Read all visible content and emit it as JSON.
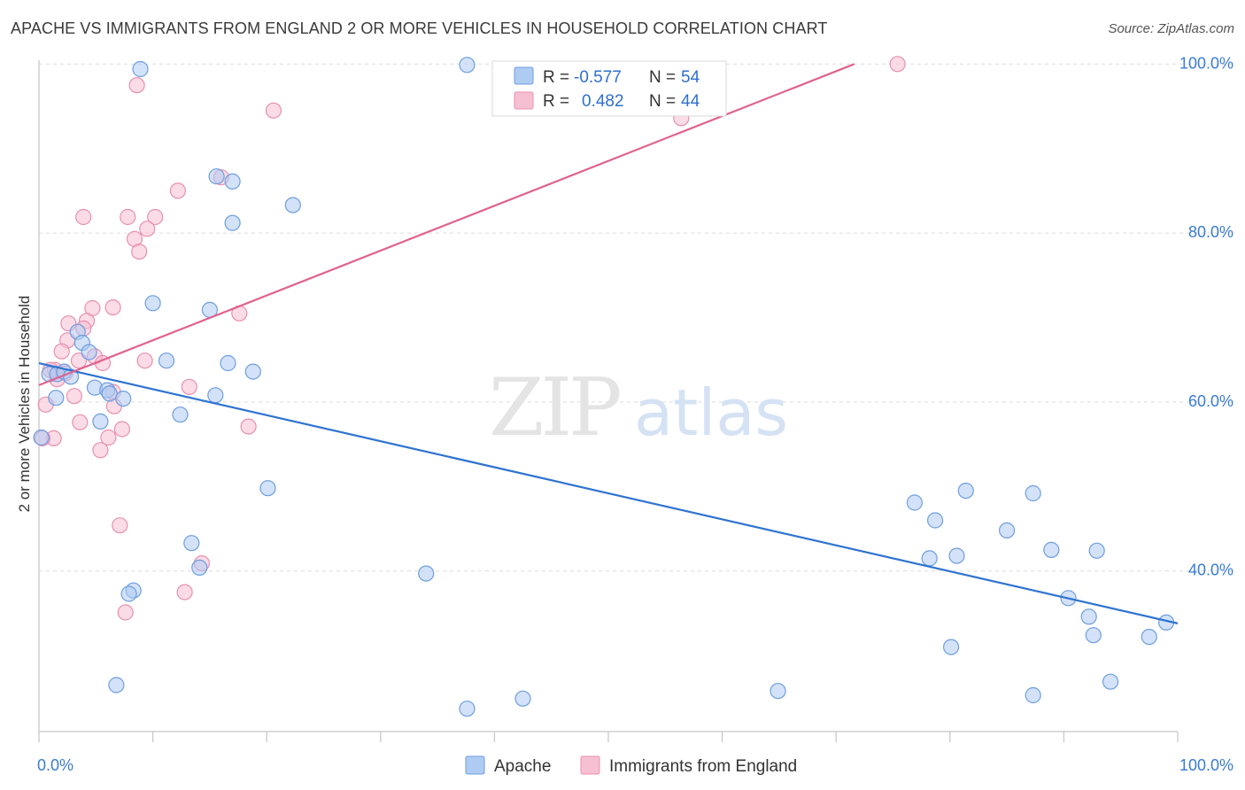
{
  "title": "APACHE VS IMMIGRANTS FROM ENGLAND 2 OR MORE VEHICLES IN HOUSEHOLD CORRELATION CHART",
  "source": "Source: ZipAtlas.com",
  "watermark": {
    "zip": "ZIP",
    "atlas": "atlas"
  },
  "colors": {
    "apache_fill": "#aecbf2",
    "apache_stroke": "#6d9ee0",
    "apache_line": "#2e73d1",
    "england_fill": "#f7c0d2",
    "england_stroke": "#e98fae",
    "england_line": "#e0628f",
    "tick_text": "#3a7bd5",
    "grid": "#dcdcdc"
  },
  "stats": {
    "r_label": "R =",
    "n_label": "N =",
    "apache": {
      "r": "-0.577",
      "n": "54"
    },
    "england": {
      "r": "0.482",
      "n": "44"
    }
  },
  "chart_data": {
    "type": "scatter",
    "title": "APACHE VS IMMIGRANTS FROM ENGLAND 2 OR MORE VEHICLES IN HOUSEHOLD CORRELATION CHART",
    "xlabel": "",
    "ylabel": "2 or more Vehicles in Household",
    "xlim": [
      0,
      100
    ],
    "ylim": [
      21,
      101.5
    ],
    "x_tick_labels": [
      {
        "value": 0,
        "label": "0.0%"
      },
      {
        "value": 100,
        "label": "100.0%"
      }
    ],
    "y_tick_labels": [
      {
        "value": 40,
        "label": "40.0%"
      },
      {
        "value": 60,
        "label": "60.0%"
      },
      {
        "value": 80,
        "label": "80.0%"
      },
      {
        "value": 100,
        "label": "100.0%"
      }
    ],
    "grid": true,
    "legend_position": "bottom-center",
    "series": [
      {
        "name": "Apache",
        "trend": {
          "x": [
            0,
            100
          ],
          "y": [
            64.6,
            33.8
          ]
        },
        "points": [
          [
            8.9,
            99.4
          ],
          [
            37.6,
            99.9
          ],
          [
            15.6,
            86.7
          ],
          [
            17.0,
            86.1
          ],
          [
            17.0,
            81.2
          ],
          [
            22.3,
            83.3
          ],
          [
            10.0,
            71.7
          ],
          [
            15.0,
            70.9
          ],
          [
            3.4,
            68.3
          ],
          [
            3.8,
            67.0
          ],
          [
            4.4,
            65.9
          ],
          [
            11.2,
            64.9
          ],
          [
            16.6,
            64.6
          ],
          [
            18.8,
            63.6
          ],
          [
            0.9,
            63.3
          ],
          [
            1.6,
            63.3
          ],
          [
            2.2,
            63.6
          ],
          [
            2.8,
            63.0
          ],
          [
            4.9,
            61.7
          ],
          [
            6.0,
            61.4
          ],
          [
            6.2,
            61.0
          ],
          [
            7.4,
            60.4
          ],
          [
            12.4,
            58.5
          ],
          [
            15.5,
            60.8
          ],
          [
            1.5,
            60.5
          ],
          [
            5.4,
            57.7
          ],
          [
            0.2,
            55.8
          ],
          [
            20.1,
            49.8
          ],
          [
            13.4,
            43.3
          ],
          [
            14.1,
            40.4
          ],
          [
            34.0,
            39.7
          ],
          [
            8.3,
            37.7
          ],
          [
            7.9,
            37.3
          ],
          [
            6.8,
            26.5
          ],
          [
            37.6,
            23.7
          ],
          [
            42.5,
            24.9
          ],
          [
            64.9,
            25.8
          ],
          [
            76.9,
            48.1
          ],
          [
            78.7,
            46.0
          ],
          [
            81.4,
            49.5
          ],
          [
            87.3,
            49.2
          ],
          [
            85.0,
            44.8
          ],
          [
            78.2,
            41.5
          ],
          [
            80.6,
            41.8
          ],
          [
            88.9,
            42.5
          ],
          [
            92.9,
            42.4
          ],
          [
            90.4,
            36.8
          ],
          [
            92.2,
            34.6
          ],
          [
            92.6,
            32.4
          ],
          [
            97.5,
            32.2
          ],
          [
            99.0,
            33.9
          ],
          [
            80.1,
            31.0
          ],
          [
            94.1,
            26.9
          ],
          [
            87.3,
            25.3
          ]
        ]
      },
      {
        "name": "Immigrants from England",
        "trend": {
          "x": [
            0,
            71.6
          ],
          "y": [
            62.0,
            100.0
          ]
        },
        "points": [
          [
            8.6,
            97.5
          ],
          [
            20.6,
            94.5
          ],
          [
            75.4,
            100.0
          ],
          [
            56.4,
            93.6
          ],
          [
            16.0,
            86.6
          ],
          [
            12.2,
            85.0
          ],
          [
            3.9,
            81.9
          ],
          [
            7.8,
            81.9
          ],
          [
            10.2,
            81.9
          ],
          [
            9.5,
            80.5
          ],
          [
            8.4,
            79.3
          ],
          [
            8.8,
            77.8
          ],
          [
            4.7,
            71.1
          ],
          [
            6.5,
            71.2
          ],
          [
            17.6,
            70.5
          ],
          [
            2.6,
            69.3
          ],
          [
            4.2,
            69.6
          ],
          [
            3.9,
            68.7
          ],
          [
            2.5,
            67.3
          ],
          [
            4.9,
            65.4
          ],
          [
            3.5,
            64.9
          ],
          [
            5.6,
            64.6
          ],
          [
            9.3,
            64.9
          ],
          [
            1.4,
            63.8
          ],
          [
            2.3,
            63.4
          ],
          [
            1.6,
            62.7
          ],
          [
            13.2,
            61.8
          ],
          [
            6.5,
            61.2
          ],
          [
            3.1,
            60.7
          ],
          [
            0.6,
            59.7
          ],
          [
            6.6,
            59.5
          ],
          [
            3.6,
            57.6
          ],
          [
            18.4,
            57.1
          ],
          [
            7.3,
            56.8
          ],
          [
            6.1,
            55.8
          ],
          [
            1.3,
            55.7
          ],
          [
            0.3,
            55.7
          ],
          [
            5.4,
            54.3
          ],
          [
            7.1,
            45.4
          ],
          [
            14.3,
            40.9
          ],
          [
            12.8,
            37.5
          ],
          [
            7.6,
            35.1
          ],
          [
            1.0,
            63.8
          ],
          [
            2.0,
            66.0
          ]
        ]
      }
    ]
  }
}
